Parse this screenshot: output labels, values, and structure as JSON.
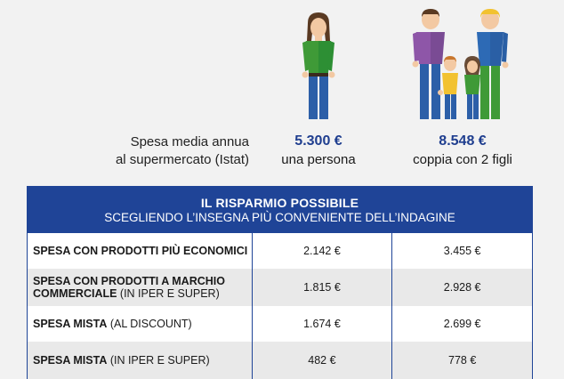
{
  "summary": {
    "label_line1": "Spesa media annua",
    "label_line2": "al supermercato (Istat)",
    "single": {
      "amount": "5.300 €",
      "caption": "una persona"
    },
    "family": {
      "amount": "8.548 €",
      "caption": "coppia con 2 figli"
    }
  },
  "table": {
    "header_title": "IL RISPARMIO POSSIBILE",
    "header_subtitle": "SCEGLIENDO L’INSEGNA PIÙ CONVENIENTE DELL’INDAGINE",
    "rows": [
      {
        "label_bold": "SPESA CON PRODOTTI PIÙ ECONOMICI",
        "label_rest": "",
        "single": "2.142 €",
        "family": "3.455 €"
      },
      {
        "label_bold": "SPESA CON  PRODOTTI A MARCHIO COMMERCIALE",
        "label_rest": " (IN IPER E SUPER)",
        "single": "1.815 €",
        "family": "2.928 €"
      },
      {
        "label_bold": "SPESA MISTA",
        "label_rest": " (AL DISCOUNT)",
        "single": "1.674 €",
        "family": "2.699 €"
      },
      {
        "label_bold": "SPESA MISTA",
        "label_rest": " (IN IPER E SUPER)",
        "single": "482 €",
        "family": "778 €"
      }
    ]
  },
  "colors": {
    "brand_blue": "#1f4497",
    "amount_blue": "#1f3e8f",
    "shirt_green": "#3f9a37",
    "shirt_blue": "#2d6ab5",
    "shirt_purple": "#8e56a8",
    "jeans_blue": "#2c5fa8"
  },
  "icons": [
    "woman-figure-icon",
    "family-figure-icon"
  ]
}
